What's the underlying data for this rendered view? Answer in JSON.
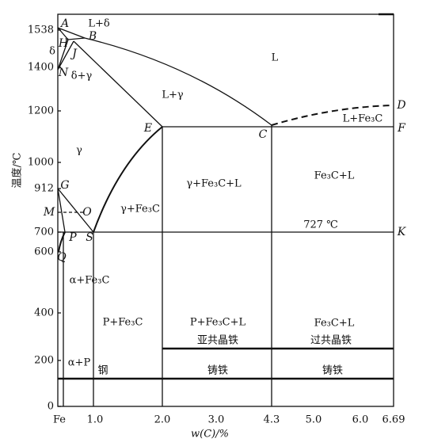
{
  "axes": {
    "y_label": "温度/℃",
    "x_label": "w(C)/%",
    "y_ticks": [
      "1538",
      "1400",
      "1200",
      "1000",
      "912",
      "700",
      "600",
      "400",
      "200",
      "0"
    ],
    "x_ticks": [
      "Fe",
      "1.0",
      "2.0",
      "3.0",
      "4.3",
      "5.0",
      "6.0",
      "6.69"
    ]
  },
  "points": [
    "A",
    "H",
    "B",
    "J",
    "N",
    "G",
    "M",
    "O",
    "P",
    "S",
    "Q",
    "E",
    "C",
    "D",
    "F",
    "K"
  ],
  "regions": [
    "L+δ",
    "δ",
    "δ+γ",
    "L",
    "L+γ",
    "γ",
    "γ+Fe₃C",
    "γ+Fe₃C+L",
    "Fe₃C+L",
    "L+Fe₃C",
    "727 ℃",
    "α+Fe₃C",
    "P+Fe₃C",
    "P+Fe₃C+L",
    "Fe₃C+L",
    "亚共晶铁",
    "过共晶铁",
    "α+P",
    "钢",
    "铸铁",
    "铸铁"
  ]
}
